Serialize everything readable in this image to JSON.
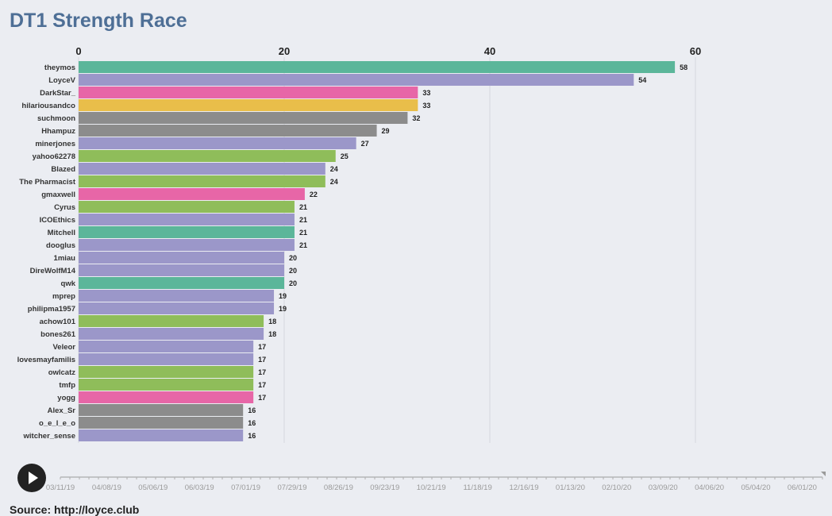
{
  "title": "DT1 Strength Race",
  "source": "Source: http://loyce.club",
  "controls": {
    "play_icon": "play-icon",
    "timeline_labels": [
      "03/11/19",
      "04/08/19",
      "05/06/19",
      "06/03/19",
      "07/01/19",
      "07/29/19",
      "08/26/19",
      "09/23/19",
      "10/21/19",
      "11/18/19",
      "12/16/19",
      "01/13/20",
      "02/10/20",
      "03/09/20",
      "04/06/20",
      "05/04/20",
      "06/01/20"
    ],
    "timeline_progress": 0.0
  },
  "chart_data": {
    "type": "bar",
    "orientation": "horizontal",
    "title": "DT1 Strength Race",
    "xlim": [
      0,
      75
    ],
    "x_ticks": [
      0,
      20,
      40,
      60
    ],
    "grid": true,
    "categories": [
      "theymos",
      "LoyceV",
      "DarkStar_",
      "hilariousandco",
      "suchmoon",
      "Hhampuz",
      "minerjones",
      "yahoo62278",
      "Blazed",
      "The Pharmacist",
      "gmaxwell",
      "Cyrus",
      "ICOEthics",
      "Mitchell",
      "dooglus",
      "1miau",
      "DireWolfM14",
      "qwk",
      "mprep",
      "philipma1957",
      "achow101",
      "bones261",
      "Veleor",
      "lovesmayfamilis",
      "owlcatz",
      "tmfp",
      "yogg",
      "Alex_Sr",
      "o_e_l_e_o",
      "witcher_sense"
    ],
    "values": [
      58,
      54,
      33,
      33,
      32,
      29,
      27,
      25,
      24,
      24,
      22,
      21,
      21,
      21,
      21,
      20,
      20,
      20,
      19,
      19,
      18,
      18,
      17,
      17,
      17,
      17,
      17,
      16,
      16,
      16
    ],
    "colors": [
      "#5bb69a",
      "#9b97c9",
      "#e766a7",
      "#e9be4a",
      "#8c8c8c",
      "#8c8c8c",
      "#9b97c9",
      "#8fbd5a",
      "#9b97c9",
      "#8fbd5a",
      "#e766a7",
      "#8fbd5a",
      "#9b97c9",
      "#5bb69a",
      "#9b97c9",
      "#9b97c9",
      "#9b97c9",
      "#5bb69a",
      "#9b97c9",
      "#9b97c9",
      "#8fbd5a",
      "#9b97c9",
      "#9b97c9",
      "#9b97c9",
      "#8fbd5a",
      "#8fbd5a",
      "#e766a7",
      "#8c8c8c",
      "#8c8c8c",
      "#9b97c9"
    ]
  }
}
